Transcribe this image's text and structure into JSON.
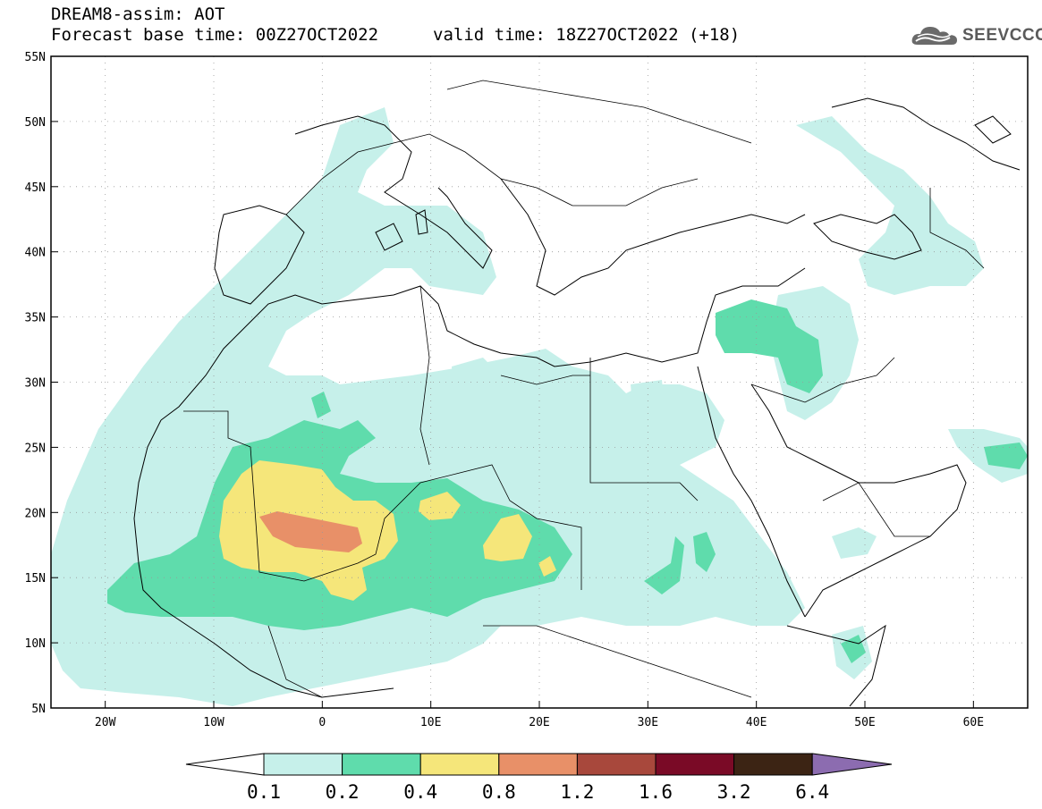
{
  "header": {
    "title": "DREAM8-assim: AOT",
    "base_time": "Forecast base time: 00Z27OCT2022",
    "valid_time": "valid time: 18Z27OCT2022 (+18)"
  },
  "logo": {
    "text": "SEEVCCC",
    "icon": "cloud-icon"
  },
  "map": {
    "lat_ticks": [
      "55N",
      "50N",
      "45N",
      "40N",
      "35N",
      "30N",
      "25N",
      "20N",
      "15N",
      "10N",
      "5N"
    ],
    "lon_ticks": [
      "20W",
      "10W",
      "0",
      "10E",
      "20E",
      "30E",
      "40E",
      "50E",
      "60E"
    ],
    "lon_range": [
      -25,
      65
    ],
    "lat_range": [
      5,
      55
    ],
    "gridlines": "dotted"
  },
  "colorbar": {
    "labels": [
      "0.1",
      "0.2",
      "0.4",
      "0.8",
      "1.2",
      "1.6",
      "3.2",
      "6.4"
    ],
    "colors": [
      "#ffffff",
      "#c6f0ea",
      "#5fdcac",
      "#f5e67a",
      "#e89068",
      "#a8483c",
      "#7a0a26",
      "#3c2414",
      "#8c6cb0"
    ],
    "thresholds": [
      0.1,
      0.2,
      0.4,
      0.8,
      1.2,
      1.6,
      3.2,
      6.4
    ]
  }
}
